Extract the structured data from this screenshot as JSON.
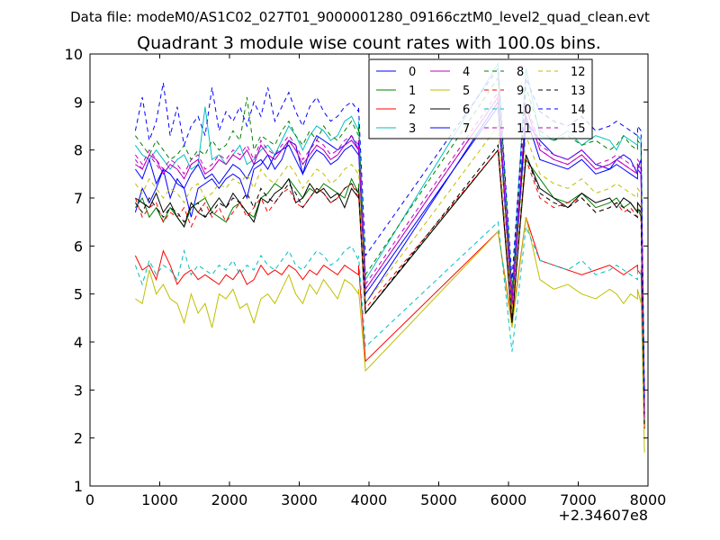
{
  "figure": {
    "suptitle": "Data file: modeM0/AS1C02_027T01_9000001280_09166cztM0_level2_quad_clean.evt",
    "title": "Quadrant 3 module wise count rates with 100.0s bins.",
    "x_offset_label": "+2.34607e8"
  },
  "chart_data": {
    "type": "line",
    "title": "Quadrant 3 module wise count rates with 100.0s bins.",
    "xlabel": "",
    "ylabel": "",
    "xlim": [
      0,
      8000
    ],
    "ylim": [
      1,
      10
    ],
    "x_offset": "+2.34607e8",
    "xticks": [
      0,
      1000,
      2000,
      3000,
      4000,
      5000,
      6000,
      7000,
      8000
    ],
    "yticks": [
      1,
      2,
      3,
      4,
      5,
      6,
      7,
      8,
      9,
      10
    ],
    "x_tick_labels": [
      "0",
      "1000",
      "2000",
      "3000",
      "4000",
      "5000",
      "6000",
      "7000",
      "8000"
    ],
    "y_tick_labels": [
      "1",
      "2",
      "3",
      "4",
      "5",
      "6",
      "7",
      "8",
      "9",
      "10"
    ],
    "grid": false,
    "legend_position": "top-right",
    "legend_columns": 4,
    "series": [
      {
        "name": "0",
        "color": "#0000ff",
        "style": "solid",
        "values": [
          6.7,
          7.2,
          6.9,
          7.2,
          7.6,
          7.0,
          7.4,
          7.2,
          6.6,
          7.2,
          7.3,
          7.4,
          7.2,
          7.4,
          7.5,
          7.4,
          7.0,
          7.6,
          7.7,
          7.9,
          7.6,
          7.8,
          8.2,
          8.1,
          4.8,
          7.5,
          8.0,
          8.3,
          8.2,
          8.1,
          8.0,
          8.1,
          8.3,
          8.0,
          8.2,
          9.0,
          4.7,
          8.6,
          8.2,
          7.9,
          7.8,
          8.0,
          7.7,
          7.6,
          7.8,
          7.9,
          7.8,
          7.5,
          7.6,
          7.8,
          7.7,
          2.4
        ]
      },
      {
        "name": "1",
        "color": "#008000",
        "style": "solid",
        "values": [
          6.8,
          7.0,
          6.6,
          6.8,
          6.5,
          6.8,
          6.6,
          6.4,
          6.8,
          6.9,
          7.0,
          6.7,
          6.6,
          6.5,
          6.8,
          6.9,
          6.7,
          6.6,
          7.0,
          7.1,
          7.3,
          7.2,
          7.4,
          7.2,
          4.6,
          7.0,
          7.2,
          7.1,
          7.3,
          7.2,
          7.1,
          7.0,
          7.4,
          7.1,
          7.3,
          8.0,
          4.5,
          7.8,
          7.4,
          7.0,
          6.9,
          7.1,
          6.8,
          6.9,
          7.0,
          6.8,
          6.9,
          6.7,
          6.8,
          6.6,
          6.7,
          2.3
        ]
      },
      {
        "name": "2",
        "color": "#ff0000",
        "style": "solid",
        "values": [
          5.8,
          5.5,
          5.6,
          5.3,
          5.9,
          5.6,
          5.2,
          5.4,
          5.5,
          5.3,
          5.4,
          5.3,
          5.2,
          5.4,
          5.3,
          5.5,
          5.2,
          5.3,
          5.6,
          5.4,
          5.5,
          5.4,
          5.6,
          5.5,
          3.6,
          5.3,
          5.5,
          5.4,
          5.6,
          5.5,
          5.4,
          5.6,
          5.5,
          5.4,
          5.6,
          6.3,
          4.4,
          6.6,
          5.7,
          5.6,
          5.5,
          5.4,
          5.5,
          5.6,
          5.5,
          5.4,
          5.5,
          5.6,
          5.5,
          5.4,
          5.5,
          2.2
        ]
      },
      {
        "name": "3",
        "color": "#00bfbf",
        "style": "solid",
        "values": [
          8.1,
          7.9,
          7.8,
          8.0,
          7.8,
          7.6,
          7.8,
          7.9,
          7.6,
          7.7,
          8.9,
          7.8,
          7.9,
          7.7,
          7.9,
          8.1,
          7.7,
          7.8,
          8.0,
          8.1,
          7.9,
          8.2,
          8.5,
          8.3,
          5.3,
          8.0,
          8.3,
          8.5,
          8.4,
          8.2,
          8.3,
          8.6,
          8.7,
          8.4,
          8.6,
          9.8,
          5.0,
          9.7,
          8.3,
          8.2,
          8.4,
          8.1,
          8.3,
          8.2,
          8.0,
          8.3,
          8.2,
          8.1,
          8.3,
          8.2,
          8.0,
          2.7
        ]
      },
      {
        "name": "4",
        "color": "#bf00bf",
        "style": "solid",
        "values": [
          7.7,
          7.6,
          7.9,
          7.8,
          7.5,
          7.7,
          7.6,
          7.4,
          7.7,
          7.8,
          7.5,
          7.6,
          7.8,
          7.7,
          7.9,
          7.8,
          8.0,
          7.7,
          8.1,
          7.9,
          7.8,
          8.0,
          8.2,
          8.0,
          5.1,
          7.7,
          7.9,
          8.1,
          8.0,
          7.8,
          7.9,
          8.1,
          8.2,
          8.0,
          8.1,
          9.1,
          4.8,
          8.9,
          8.0,
          7.8,
          7.7,
          7.9,
          7.6,
          7.7,
          7.8,
          7.7,
          7.6,
          7.5,
          7.7,
          7.6,
          7.4,
          2.5
        ]
      },
      {
        "name": "5",
        "color": "#bfbf00",
        "style": "solid",
        "values": [
          4.9,
          4.8,
          5.5,
          5.0,
          5.2,
          4.9,
          4.8,
          4.4,
          5.0,
          4.6,
          4.8,
          4.3,
          5.0,
          4.9,
          5.1,
          4.7,
          4.8,
          4.4,
          4.9,
          5.0,
          4.8,
          5.1,
          5.4,
          5.0,
          3.4,
          4.8,
          5.2,
          5.0,
          5.3,
          5.1,
          4.9,
          5.3,
          5.2,
          5.0,
          5.1,
          6.3,
          4.3,
          6.6,
          5.3,
          5.1,
          5.2,
          5.0,
          4.9,
          5.1,
          5.0,
          4.8,
          5.0,
          4.9,
          5.1,
          4.8,
          5.0,
          1.7
        ]
      },
      {
        "name": "6",
        "color": "#000000",
        "style": "solid",
        "values": [
          7.0,
          6.9,
          6.8,
          7.1,
          6.7,
          6.9,
          6.6,
          6.4,
          6.9,
          6.7,
          6.6,
          6.8,
          7.0,
          6.8,
          7.1,
          6.9,
          6.7,
          6.5,
          7.0,
          6.9,
          7.1,
          7.2,
          7.4,
          6.9,
          4.6,
          7.0,
          7.3,
          7.1,
          7.2,
          7.0,
          7.1,
          6.8,
          7.2,
          7.0,
          7.1,
          8.0,
          4.4,
          7.9,
          7.2,
          7.0,
          6.8,
          7.1,
          6.9,
          7.0,
          6.8,
          7.0,
          6.9,
          6.7,
          6.9,
          6.8,
          6.7,
          2.5
        ]
      },
      {
        "name": "7",
        "color": "#0000ff",
        "style": "solid",
        "values": [
          7.6,
          7.4,
          7.8,
          7.3,
          7.6,
          7.5,
          7.3,
          7.2,
          7.5,
          7.7,
          7.4,
          7.5,
          7.3,
          7.5,
          7.7,
          7.6,
          7.4,
          7.7,
          7.8,
          7.6,
          7.9,
          8.0,
          8.1,
          7.8,
          5.0,
          7.5,
          7.8,
          8.0,
          7.9,
          7.7,
          7.8,
          8.0,
          8.1,
          7.9,
          8.0,
          8.9,
          4.9,
          8.7,
          7.8,
          7.7,
          7.6,
          7.8,
          7.5,
          7.6,
          7.7,
          7.6,
          7.5,
          7.4,
          7.6,
          7.5,
          7.4,
          2.6
        ]
      },
      {
        "name": "8",
        "color": "#008000",
        "style": "dashed",
        "values": [
          8.3,
          8.1,
          7.9,
          8.2,
          8.0,
          7.8,
          7.9,
          8.1,
          7.8,
          8.0,
          7.9,
          8.2,
          8.0,
          8.1,
          8.4,
          8.2,
          9.1,
          8.0,
          8.3,
          8.2,
          8.1,
          8.4,
          8.6,
          8.3,
          5.4,
          8.1,
          8.4,
          8.2,
          8.5,
          8.3,
          8.2,
          8.4,
          8.6,
          8.3,
          8.5,
          9.5,
          5.1,
          9.3,
          8.4,
          8.2,
          8.3,
          8.1,
          8.2,
          8.0,
          8.1,
          8.3,
          8.1,
          8.0,
          8.2,
          8.1,
          8.0,
          2.6
        ]
      },
      {
        "name": "9",
        "color": "#ff0000",
        "style": "dashed",
        "values": [
          7.0,
          6.6,
          6.8,
          6.9,
          6.5,
          6.7,
          6.6,
          6.8,
          6.4,
          6.7,
          6.9,
          6.6,
          6.8,
          6.5,
          6.7,
          6.9,
          6.6,
          6.8,
          7.0,
          6.7,
          6.9,
          7.1,
          7.2,
          6.9,
          4.7,
          6.8,
          7.0,
          7.2,
          7.1,
          6.9,
          7.0,
          7.2,
          7.3,
          7.0,
          7.1,
          8.0,
          4.6,
          7.8,
          7.0,
          6.8,
          6.9,
          7.0,
          6.7,
          6.8,
          6.9,
          6.7,
          6.8,
          6.6,
          6.8,
          6.7,
          6.6,
          2.4
        ]
      },
      {
        "name": "10",
        "color": "#00bfbf",
        "style": "dashed",
        "values": [
          5.6,
          5.2,
          5.7,
          5.4,
          5.6,
          5.5,
          5.3,
          5.9,
          5.4,
          5.6,
          5.5,
          5.4,
          5.6,
          5.5,
          5.7,
          5.4,
          5.6,
          5.5,
          5.8,
          5.6,
          5.5,
          5.7,
          5.9,
          5.6,
          3.9,
          5.5,
          5.7,
          5.9,
          5.8,
          5.6,
          5.7,
          5.9,
          6.0,
          5.7,
          5.8,
          6.5,
          3.8,
          6.4,
          5.7,
          5.6,
          5.5,
          5.7,
          5.4,
          5.5,
          5.6,
          5.5,
          5.4,
          5.3,
          5.5,
          5.4,
          5.3,
          2.3
        ]
      },
      {
        "name": "11",
        "color": "#bf00bf",
        "style": "dashed",
        "values": [
          7.9,
          7.7,
          8.0,
          7.8,
          7.6,
          7.8,
          7.7,
          7.5,
          7.8,
          7.9,
          7.6,
          7.7,
          7.9,
          7.8,
          8.0,
          7.9,
          8.1,
          7.8,
          8.2,
          8.0,
          7.9,
          8.1,
          8.3,
          8.1,
          5.2,
          7.8,
          8.0,
          8.2,
          8.1,
          7.9,
          8.0,
          8.2,
          8.3,
          8.1,
          8.2,
          9.2,
          4.9,
          9.0,
          8.1,
          7.9,
          7.8,
          8.0,
          7.7,
          7.8,
          7.9,
          7.8,
          7.7,
          7.6,
          7.8,
          7.7,
          7.5,
          2.5
        ]
      },
      {
        "name": "12",
        "color": "#bfbf00",
        "style": "dashed",
        "values": [
          7.3,
          7.1,
          7.4,
          7.2,
          7.0,
          7.2,
          7.1,
          6.9,
          7.2,
          7.3,
          7.0,
          7.1,
          7.3,
          7.2,
          7.4,
          7.3,
          7.5,
          7.2,
          7.6,
          7.4,
          7.3,
          7.5,
          7.7,
          7.5,
          4.8,
          7.2,
          7.4,
          7.6,
          7.5,
          7.3,
          7.4,
          7.6,
          7.7,
          7.5,
          7.6,
          8.5,
          4.6,
          8.3,
          7.5,
          7.3,
          7.2,
          7.4,
          7.1,
          7.2,
          7.3,
          7.2,
          7.1,
          7.0,
          7.2,
          7.1,
          6.9,
          2.3
        ]
      },
      {
        "name": "13",
        "color": "#000000",
        "style": "dashed",
        "values": [
          6.9,
          6.7,
          7.0,
          6.8,
          6.6,
          6.8,
          6.7,
          6.5,
          6.8,
          6.9,
          6.6,
          6.7,
          6.9,
          6.8,
          7.0,
          6.9,
          7.1,
          6.8,
          7.2,
          7.0,
          6.9,
          7.1,
          7.3,
          7.1,
          4.6,
          6.8,
          7.0,
          7.2,
          7.1,
          6.9,
          7.0,
          7.2,
          7.3,
          7.1,
          7.2,
          8.1,
          4.4,
          7.9,
          7.1,
          6.9,
          6.8,
          7.0,
          6.7,
          6.8,
          6.9,
          6.8,
          6.7,
          6.6,
          6.8,
          6.7,
          6.5,
          2.2
        ]
      },
      {
        "name": "14",
        "color": "#0000ff",
        "style": "dashed",
        "values": [
          8.4,
          9.1,
          8.2,
          8.6,
          9.4,
          8.3,
          8.9,
          8.1,
          8.5,
          8.7,
          8.3,
          9.3,
          8.4,
          8.8,
          8.6,
          8.9,
          8.5,
          9.0,
          8.7,
          9.3,
          8.6,
          8.9,
          9.2,
          8.8,
          5.8,
          8.5,
          8.9,
          9.1,
          8.8,
          8.6,
          8.7,
          8.9,
          9.0,
          8.8,
          8.9,
          9.7,
          5.3,
          9.5,
          8.8,
          8.6,
          8.5,
          8.7,
          8.4,
          8.5,
          8.6,
          8.5,
          8.4,
          8.3,
          8.5,
          8.4,
          8.2,
          2.8
        ]
      },
      {
        "name": "15",
        "color": "#bf00bf",
        "style": "dashed",
        "values": [
          7.8,
          7.6,
          7.9,
          7.7,
          7.5,
          7.7,
          7.6,
          7.4,
          7.7,
          7.8,
          7.5,
          7.6,
          7.8,
          7.7,
          7.9,
          7.8,
          8.0,
          7.7,
          8.1,
          7.9,
          7.8,
          8.0,
          8.2,
          8.0,
          5.1,
          7.7,
          7.9,
          8.1,
          8.0,
          7.8,
          7.9,
          8.1,
          8.2,
          8.0,
          8.1,
          9.1,
          4.8,
          8.9,
          8.0,
          7.8,
          7.7,
          7.9,
          7.6,
          7.7,
          7.8,
          7.7,
          7.6,
          7.5,
          7.7,
          7.6,
          7.4,
          2.4
        ]
      }
    ],
    "x": [
      650,
      750,
      850,
      950,
      1050,
      1150,
      1250,
      1350,
      1450,
      1550,
      1650,
      1750,
      1850,
      1950,
      2050,
      2150,
      2250,
      2350,
      2450,
      2550,
      2650,
      2750,
      2850,
      2950,
      3950,
      3050,
      3150,
      3250,
      3350,
      3450,
      3550,
      3650,
      3750,
      3850,
      3850,
      5850,
      6050,
      6250,
      6450,
      6650,
      6850,
      7050,
      7250,
      7450,
      7550,
      7650,
      7750,
      7850,
      7850,
      7900,
      7900,
      7950
    ]
  }
}
